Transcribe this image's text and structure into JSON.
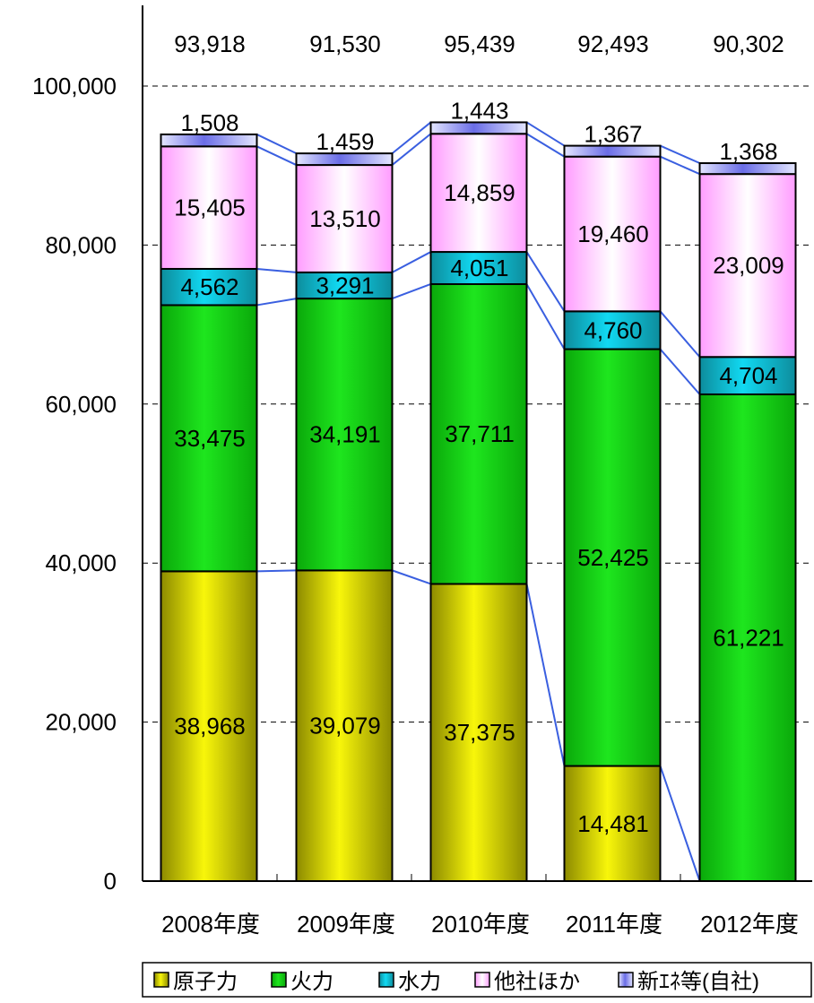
{
  "chart_data": {
    "type": "bar",
    "stacked": true,
    "categories": [
      "2008年度",
      "2009年度",
      "2010年度",
      "2011年度",
      "2012年度"
    ],
    "series": [
      {
        "name": "原子力",
        "values": [
          38968,
          39079,
          37375,
          14481,
          0
        ],
        "color_top": "#f8f60a",
        "color_bottom": "#8c8a00"
      },
      {
        "name": "火力",
        "values": [
          33475,
          34191,
          37711,
          52425,
          61221
        ],
        "color_top": "#1ee61e",
        "color_bottom": "#0aa80a"
      },
      {
        "name": "水力",
        "values": [
          4562,
          3291,
          4051,
          4760,
          4704
        ],
        "color_top": "#11d9f2",
        "color_bottom": "#0d8c9c"
      },
      {
        "name": "他社ほか",
        "values": [
          15405,
          13510,
          14859,
          19460,
          23009
        ],
        "color_top": "#ff9cff",
        "color_bottom": "#ffffff"
      },
      {
        "name": "新ｴﾈ等(自社)",
        "values": [
          1508,
          1459,
          1443,
          1367,
          1368
        ],
        "color_top": "#6a6de6",
        "color_bottom": "#e4e6ff"
      }
    ],
    "totals": [
      93918,
      91530,
      95439,
      92493,
      90302
    ],
    "total_labels": [
      "93,918",
      "91,530",
      "95,439",
      "92,493",
      "90,302"
    ],
    "value_labels": [
      [
        "38,968",
        "39,079",
        "37,375",
        "14,481",
        ""
      ],
      [
        "33,475",
        "34,191",
        "37,711",
        "52,425",
        "61,221"
      ],
      [
        "4,562",
        "3,291",
        "4,051",
        "4,760",
        "4,704"
      ],
      [
        "15,405",
        "13,510",
        "14,859",
        "19,460",
        "23,009"
      ],
      [
        "1,508",
        "1,459",
        "1,443",
        "1,367",
        "1,368"
      ]
    ],
    "ylim": [
      0,
      110000
    ],
    "yticks": [
      0,
      20000,
      40000,
      60000,
      80000,
      100000
    ],
    "ytick_labels": [
      "0",
      "20,000",
      "40,000",
      "60,000",
      "80,000",
      "100,000"
    ],
    "grid": true,
    "series_lines": true,
    "legend_position": "bottom",
    "title": "",
    "xlabel": "",
    "ylabel": ""
  }
}
